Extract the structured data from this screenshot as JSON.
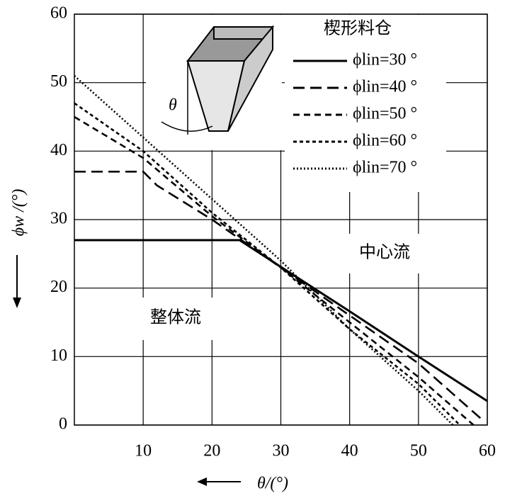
{
  "chart_data": {
    "type": "line",
    "x_label": "θ/(°)",
    "y_label": "ϕw /(°)",
    "xlim": [
      0,
      60
    ],
    "ylim": [
      0,
      60
    ],
    "xticks": [
      10,
      20,
      30,
      40,
      50,
      60
    ],
    "yticks": [
      0,
      10,
      20,
      30,
      40,
      50,
      60
    ],
    "grid": true,
    "legend_title": "楔形料仓",
    "series": [
      {
        "name": "ϕlin=30 °",
        "color": "#000000",
        "dash": "solid",
        "x": [
          0,
          24,
          30,
          40,
          50,
          60
        ],
        "values": [
          27,
          27,
          23.1,
          16.6,
          10,
          3.5
        ]
      },
      {
        "name": "ϕlin=40 °",
        "color": "#000000",
        "dash": "long-dash",
        "x": [
          0,
          10,
          12,
          20,
          30,
          40,
          50,
          59
        ],
        "values": [
          37,
          37,
          35,
          30,
          23,
          16,
          9,
          1
        ]
      },
      {
        "name": "ϕlin=50 °",
        "color": "#000000",
        "dash": "dash",
        "x": [
          0,
          10,
          20,
          30,
          40,
          50,
          58
        ],
        "values": [
          45,
          39,
          30.5,
          23,
          15,
          7,
          0
        ]
      },
      {
        "name": "ϕlin=60 °",
        "color": "#000000",
        "dash": "short-dash",
        "x": [
          0,
          10,
          20,
          30,
          40,
          50,
          56
        ],
        "values": [
          47,
          40,
          31,
          23,
          14,
          6,
          0
        ]
      },
      {
        "name": "ϕlin=70 °",
        "color": "#000000",
        "dash": "dot",
        "x": [
          0,
          10,
          20,
          30,
          40,
          50,
          55
        ],
        "values": [
          51,
          42,
          33,
          24,
          14,
          5,
          0
        ]
      }
    ],
    "annotations": [
      "整体流",
      "中心流",
      "θ"
    ]
  }
}
